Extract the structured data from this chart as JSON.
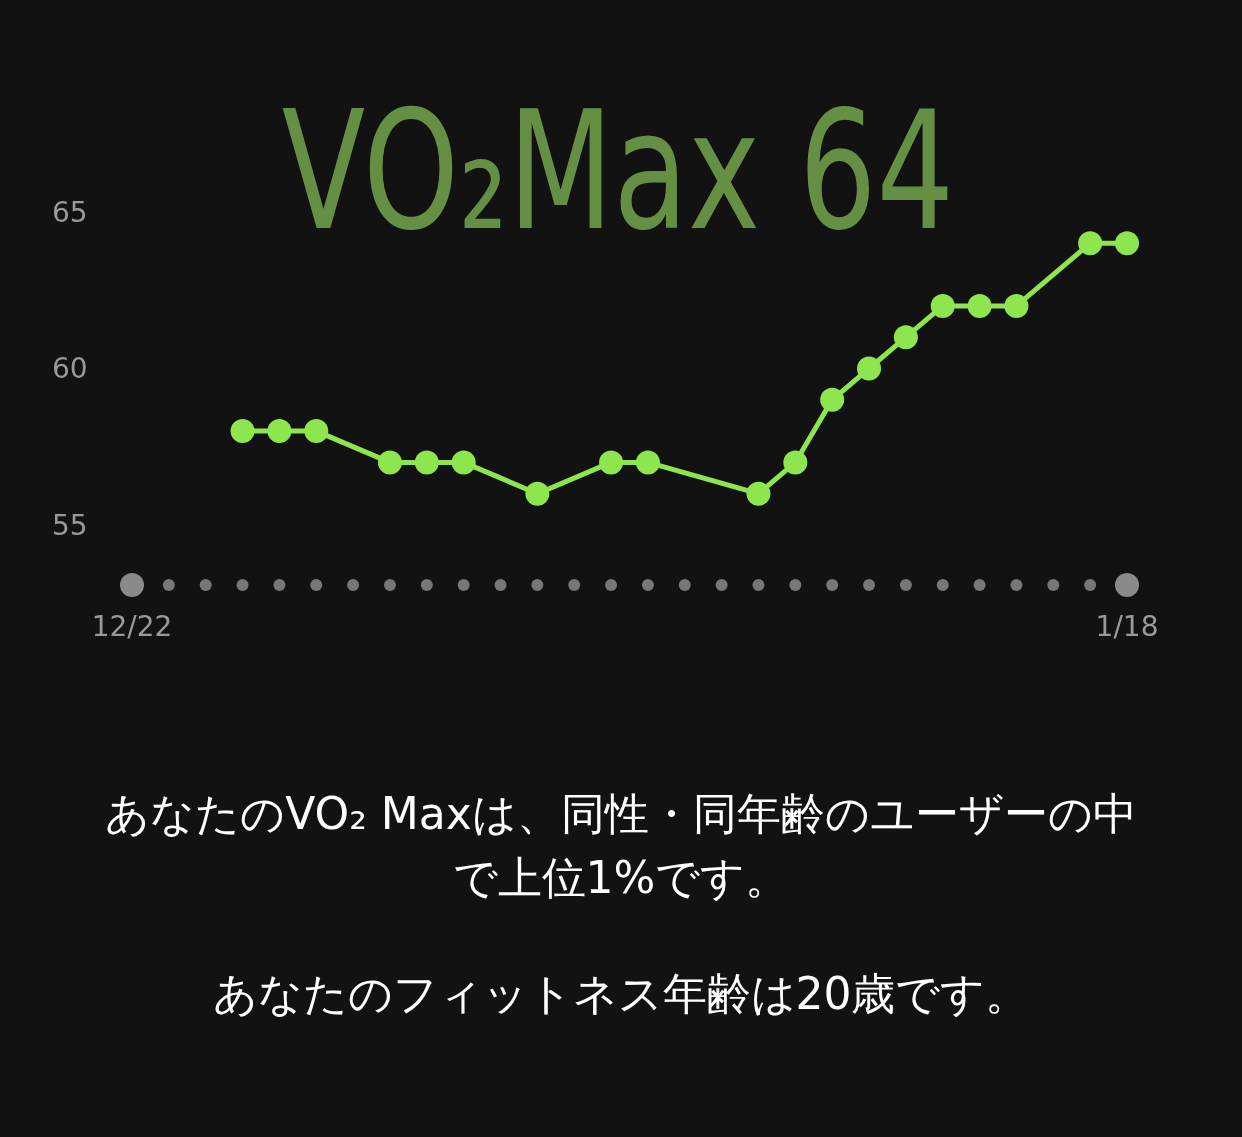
{
  "chart_data": {
    "type": "line",
    "title": "VO₂Max 64",
    "categories": [
      "12/22",
      null,
      null,
      null,
      null,
      null,
      null,
      null,
      null,
      null,
      null,
      null,
      null,
      null,
      null,
      null,
      null,
      null,
      null,
      null,
      null,
      null,
      null,
      null,
      null,
      null,
      null,
      "1/18"
    ],
    "series": [
      {
        "color": "#8ee64f",
        "values": [
          null,
          null,
          null,
          58,
          58,
          58,
          null,
          57,
          57,
          57,
          null,
          56,
          null,
          57,
          57,
          null,
          null,
          56,
          57,
          59,
          60,
          61,
          62,
          62,
          62,
          null,
          64,
          64
        ]
      }
    ],
    "ylim": [
      55,
      65
    ],
    "yticks": [
      55,
      60,
      65
    ],
    "grid": false,
    "marker": "circle",
    "line_style": "solid",
    "annotations": [
      "あなたのVO₂ Maxは、同性・同年齢のユーザーの中で上位1%です。",
      "あなたのフィットネス年齢は20歳です。"
    ]
  }
}
